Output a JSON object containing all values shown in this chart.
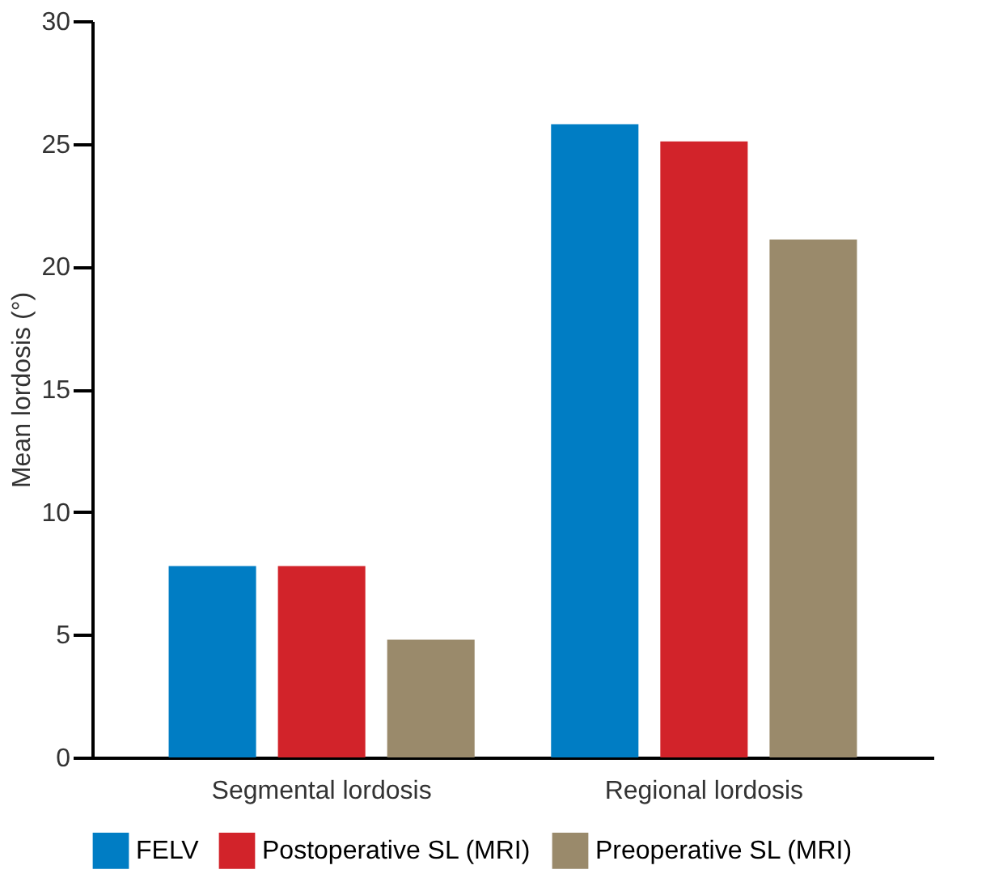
{
  "chart_data": {
    "type": "bar",
    "ylabel": "Mean lordosis (°)",
    "categories": [
      "Segmental lordosis",
      "Regional lordosis"
    ],
    "series": [
      {
        "name": "FELV",
        "color": "#007dc4",
        "values": [
          7.8,
          25.8
        ]
      },
      {
        "name": "Postoperative SL (MRI)",
        "color": "#d2232a",
        "values": [
          7.8,
          25.1
        ]
      },
      {
        "name": "Preoperative SL (MRI)",
        "color": "#9a8a6b",
        "values": [
          4.8,
          21.1
        ]
      }
    ],
    "ylim": [
      0,
      30
    ],
    "yticks": [
      0,
      5,
      10,
      15,
      20,
      25,
      30
    ],
    "grid": false,
    "legend": "bottom"
  }
}
